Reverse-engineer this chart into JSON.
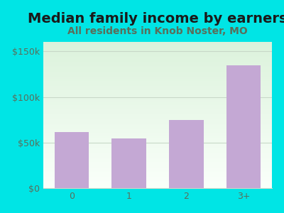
{
  "title": "Median family income by earners",
  "subtitle": "All residents in Knob Noster, MO",
  "categories": [
    "0",
    "1",
    "2",
    "3+"
  ],
  "values": [
    62000,
    55000,
    75000,
    135000
  ],
  "bar_color": "#c4a8d4",
  "ylim": [
    0,
    160000
  ],
  "yticks": [
    0,
    50000,
    100000,
    150000
  ],
  "ytick_labels": [
    "$0",
    "$50k",
    "$100k",
    "$150k"
  ],
  "outer_bg": "#00e5e5",
  "title_color": "#1a1a1a",
  "subtitle_color": "#5a6e5a",
  "tick_color": "#5a6e5a",
  "grid_color": "#c8d8c8",
  "title_fontsize": 14,
  "subtitle_fontsize": 10,
  "tick_fontsize": 9
}
